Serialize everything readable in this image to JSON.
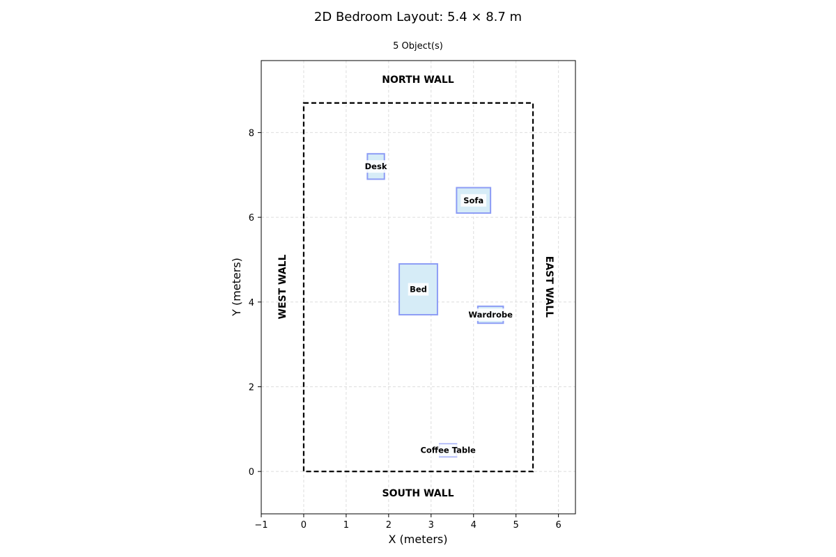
{
  "title": "2D Bedroom Layout: 5.4 × 8.7 m",
  "subtitle": "5 Object(s)",
  "walls": {
    "north": "NORTH WALL",
    "south": "SOUTH WALL",
    "east": "EAST WALL",
    "west": "WEST WALL"
  },
  "chart_data": {
    "type": "scatter",
    "xlabel": "X (meters)",
    "ylabel": "Y (meters)",
    "xlim": [
      -1,
      6.4
    ],
    "ylim": [
      -1,
      9.7
    ],
    "x_ticks": [
      -1,
      0,
      1,
      2,
      3,
      4,
      5,
      6
    ],
    "y_ticks": [
      0,
      2,
      4,
      6,
      8
    ],
    "x_tick_labels": [
      "−1",
      "0",
      "1",
      "2",
      "3",
      "4",
      "5",
      "6"
    ],
    "y_tick_labels": [
      "0",
      "2",
      "4",
      "6",
      "8"
    ],
    "grid": true,
    "room": {
      "width": 5.4,
      "depth": 8.7
    },
    "objects": [
      {
        "name": "Desk",
        "x": 1.5,
        "y": 6.9,
        "width": 0.4,
        "depth": 0.6
      },
      {
        "name": "Sofa",
        "x": 3.6,
        "y": 6.1,
        "width": 0.8,
        "depth": 0.6
      },
      {
        "name": "Bed",
        "x": 2.25,
        "y": 3.7,
        "width": 0.9,
        "depth": 1.2
      },
      {
        "name": "Wardrobe",
        "x": 4.1,
        "y": 3.5,
        "width": 0.6,
        "depth": 0.4
      },
      {
        "name": "Coffee Table",
        "x": 3.2,
        "y": 0.35,
        "width": 0.4,
        "depth": 0.3
      }
    ]
  },
  "colors": {
    "object_fill": "#d6ecf7",
    "object_edge": "#8c9cf5",
    "room_edge": "#000000",
    "grid": "#dddddd"
  }
}
